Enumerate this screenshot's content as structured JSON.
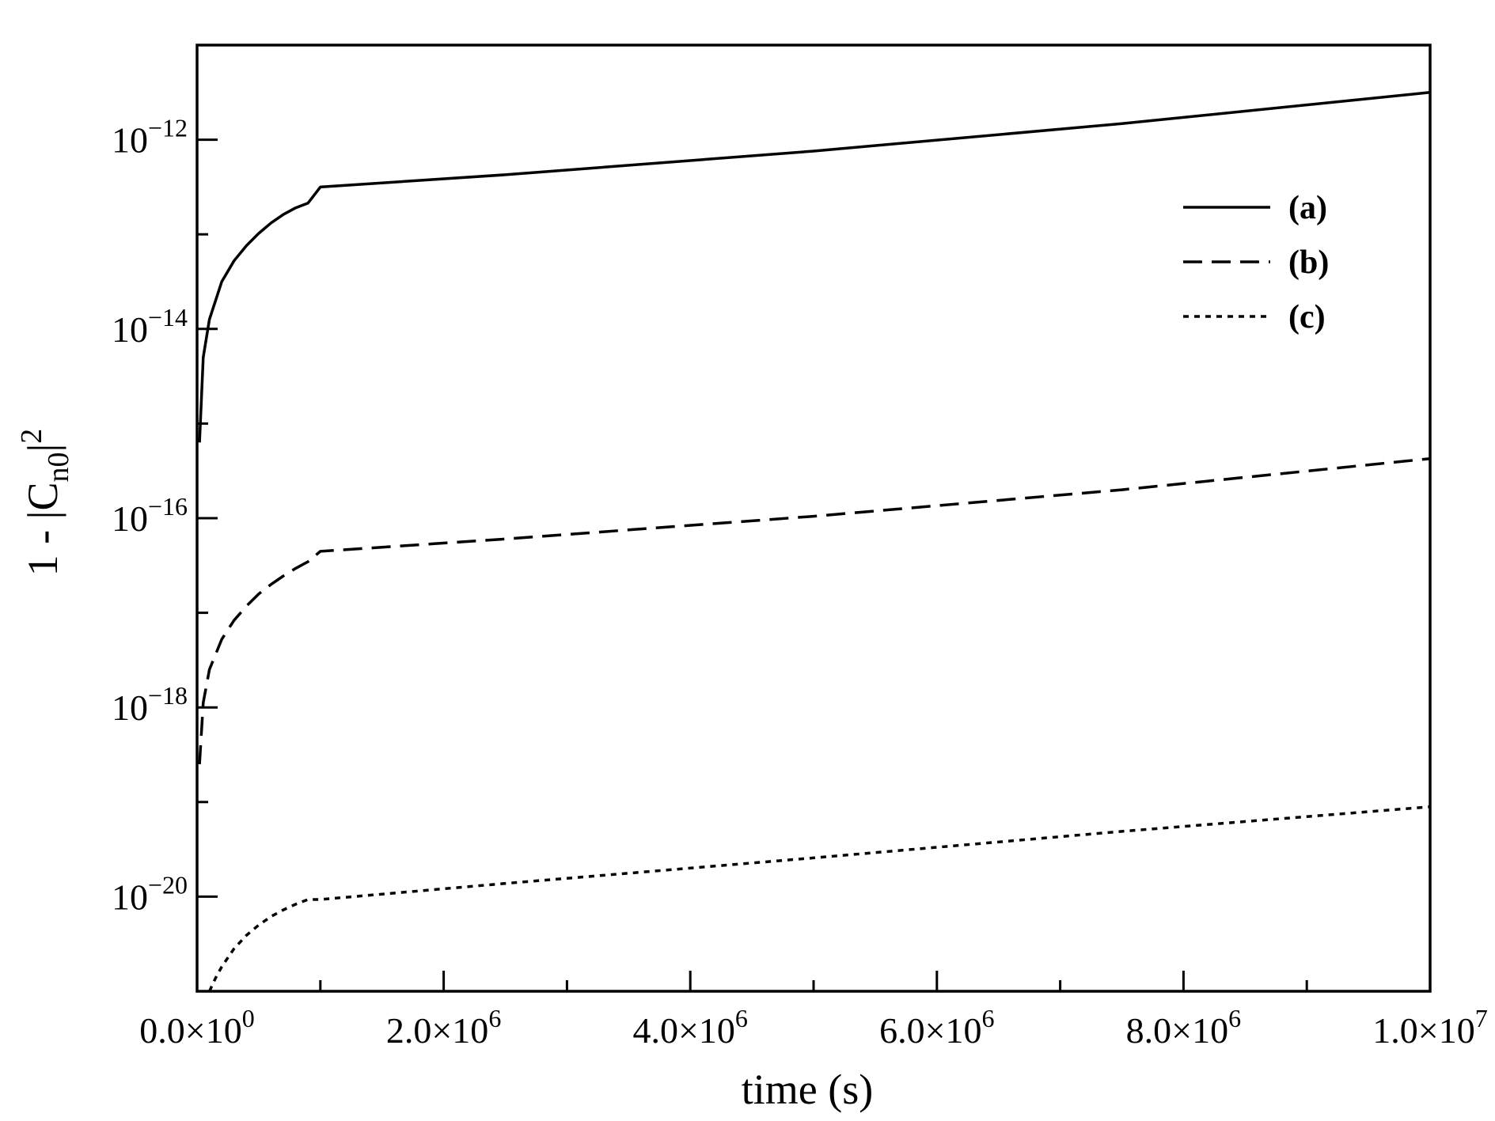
{
  "chart_data": {
    "type": "line",
    "title": "",
    "xlabel": "time (s)",
    "ylabel": "1 - |C_n0|^2",
    "ylabel_parts": {
      "lead": "1 - |C",
      "sub": "n0",
      "close": "|",
      "sup": "2"
    },
    "x_scale": "linear",
    "y_scale": "log",
    "xlim": [
      0,
      10000000
    ],
    "ylim_exponent": [
      -21,
      -11
    ],
    "grid": false,
    "legend_position": "top-right",
    "x_ticks": [
      {
        "value": 0,
        "mantissa": "0.0",
        "exponent": "0"
      },
      {
        "value": 2000000,
        "mantissa": "2.0",
        "exponent": "6"
      },
      {
        "value": 4000000,
        "mantissa": "4.0",
        "exponent": "6"
      },
      {
        "value": 6000000,
        "mantissa": "6.0",
        "exponent": "6"
      },
      {
        "value": 8000000,
        "mantissa": "8.0",
        "exponent": "6"
      },
      {
        "value": 10000000,
        "mantissa": "1.0",
        "exponent": "7"
      }
    ],
    "x_minor_ticks": [
      1000000,
      3000000,
      5000000,
      7000000,
      9000000
    ],
    "y_ticks": [
      {
        "exp": -12,
        "base": "10",
        "sup": "−12"
      },
      {
        "exp": -14,
        "base": "10",
        "sup": "−14"
      },
      {
        "exp": -16,
        "base": "10",
        "sup": "−16"
      },
      {
        "exp": -18,
        "base": "10",
        "sup": "−18"
      },
      {
        "exp": -20,
        "base": "10",
        "sup": "−20"
      }
    ],
    "y_minor_ticks": [
      -13,
      -15,
      -17,
      -19,
      -21
    ],
    "series": [
      {
        "name": "(a)",
        "dash": "solid",
        "x": [
          20000,
          50000,
          100000,
          200000,
          300000,
          400000,
          500000,
          600000,
          700000,
          800000,
          900000,
          1000000,
          2500000,
          5000000,
          7500000,
          10000000
        ],
        "y_log10": [
          -15.2,
          -14.3,
          -13.9,
          -13.5,
          -13.28,
          -13.12,
          -12.99,
          -12.88,
          -12.79,
          -12.72,
          -12.67,
          -12.5,
          -12.37,
          -12.12,
          -11.83,
          -11.5
        ]
      },
      {
        "name": "(b)",
        "dash": "dashed",
        "x": [
          20000,
          50000,
          100000,
          200000,
          300000,
          400000,
          500000,
          600000,
          700000,
          800000,
          900000,
          1000000,
          2500000,
          5000000,
          7500000,
          10000000
        ],
        "y_log10": [
          -18.6,
          -17.95,
          -17.6,
          -17.28,
          -17.08,
          -16.93,
          -16.8,
          -16.7,
          -16.61,
          -16.53,
          -16.46,
          -16.35,
          -16.22,
          -15.98,
          -15.7,
          -15.37
        ]
      },
      {
        "name": "(c)",
        "dash": "dotted",
        "x": [
          100000,
          150000,
          200000,
          300000,
          400000,
          500000,
          600000,
          700000,
          800000,
          900000,
          1000000,
          2500000,
          5000000,
          7500000,
          10000000
        ],
        "y_log10": [
          -21.0,
          -20.86,
          -20.74,
          -20.55,
          -20.41,
          -20.3,
          -20.21,
          -20.14,
          -20.08,
          -20.03,
          -20.03,
          -19.86,
          -19.59,
          -19.31,
          -19.05
        ]
      }
    ]
  }
}
